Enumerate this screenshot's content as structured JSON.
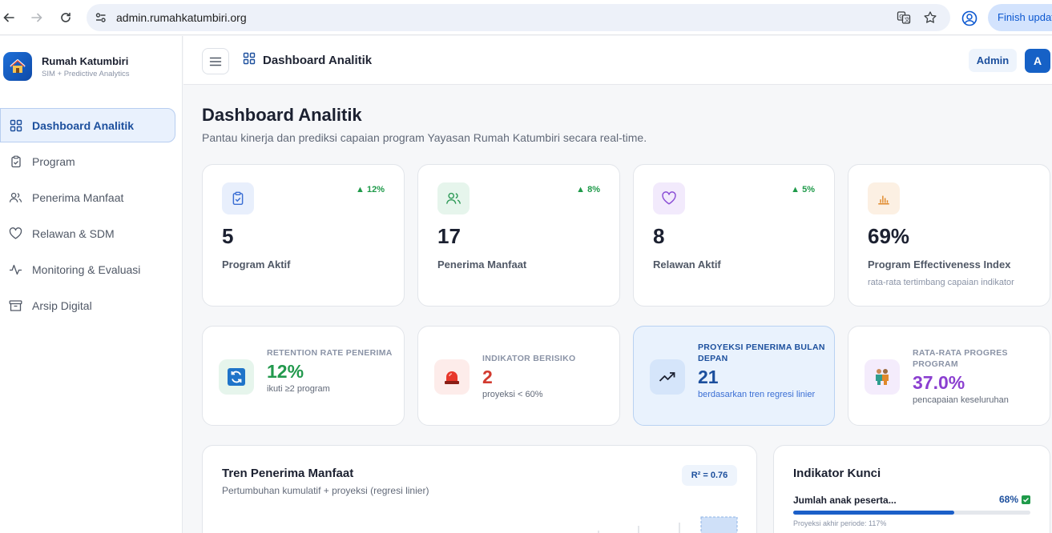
{
  "browser": {
    "url": "admin.rumahkatumbiri.org",
    "finish_update_label": "Finish update"
  },
  "sidebar": {
    "brand_name": "Rumah Katumbiri",
    "brand_sub": "SIM + Predictive Analytics",
    "items": [
      {
        "label": "Dashboard Analitik",
        "icon": "grid-icon",
        "active": true
      },
      {
        "label": "Program",
        "icon": "clipboard-icon",
        "active": false
      },
      {
        "label": "Penerima Manfaat",
        "icon": "users-icon",
        "active": false
      },
      {
        "label": "Relawan & SDM",
        "icon": "heart-icon",
        "active": false
      },
      {
        "label": "Monitoring & Evaluasi",
        "icon": "activity-icon",
        "active": false
      },
      {
        "label": "Arsip Digital",
        "icon": "archive-icon",
        "active": false
      }
    ]
  },
  "header": {
    "title": "Dashboard Analitik",
    "role_badge": "Admin",
    "avatar_initial": "A"
  },
  "main": {
    "title": "Dashboard Analitik",
    "subtitle": "Pantau kinerja dan prediksi capaian program Yayasan Rumah Katumbiri secara real-time."
  },
  "stats": [
    {
      "value": "5",
      "label": "Program Aktif",
      "trend": "▲ 12%",
      "icon": "clipboard-icon",
      "color": "#3b6fd4"
    },
    {
      "value": "17",
      "label": "Penerima Manfaat",
      "trend": "▲ 8%",
      "icon": "users-icon",
      "color": "#2e9a57"
    },
    {
      "value": "8",
      "label": "Relawan Aktif",
      "trend": "▲ 5%",
      "icon": "heart-icon",
      "color": "#8b4fd6"
    },
    {
      "value": "69%",
      "label": "Program Effectiveness Index",
      "note": "rata-rata tertimbang capaian indikator",
      "icon": "bar-chart-icon",
      "color": "#e0892b"
    }
  ],
  "kpis": [
    {
      "label": "RETENTION RATE PENERIMA",
      "value": "12%",
      "note": "ikuti ≥2 program",
      "icon": "refresh-icon",
      "value_color": "#22994d"
    },
    {
      "label": "INDIKATOR BERISIKO",
      "value": "2",
      "note": "proyeksi < 60%",
      "icon": "siren-icon",
      "value_color": "#d23a2f"
    },
    {
      "label": "PROYEKSI PENERIMA BULAN DEPAN",
      "value": "21",
      "note": "berdasarkan tren regresi linier",
      "icon": "trending-up-icon",
      "value_color": "#1c4f9d"
    },
    {
      "label": "RATA-RATA PROGRES PROGRAM",
      "value": "37.0%",
      "note": "pencapaian keseluruhan",
      "icon": "people-icon",
      "value_color": "#8b3fd0"
    }
  ],
  "trend": {
    "title": "Tren Penerima Manfaat",
    "subtitle": "Pertumbuhan kumulatif + proyeksi (regresi linier)",
    "r2": "R² = 0.76"
  },
  "indicators": {
    "title": "Indikator Kunci",
    "items": [
      {
        "name": "Jumlah anak peserta...",
        "pct": "68%",
        "progress": 0.68,
        "projection": "Proyeksi akhir periode: 117%"
      }
    ]
  }
}
